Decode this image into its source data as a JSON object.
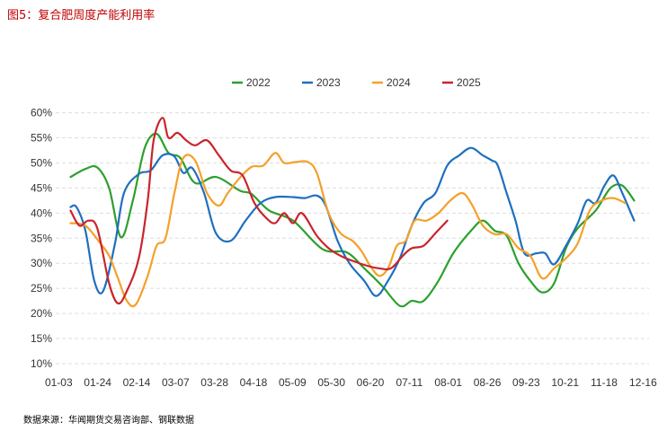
{
  "title": "图5：复合肥周度产能利用率",
  "source": "数据来源：华闻期货交易咨询部、钢联数据",
  "colors": {
    "2022": "#2ca02c",
    "2023": "#1f6fbf",
    "2024": "#f5a02a",
    "2025": "#c9242b"
  },
  "chart_data": {
    "type": "line",
    "title": "图5：复合肥周度产能利用率",
    "xlabel": "",
    "ylabel": "",
    "x_ticks": [
      "01-03",
      "01-24",
      "02-14",
      "03-07",
      "03-28",
      "04-18",
      "05-09",
      "05-30",
      "06-20",
      "07-11",
      "08-01",
      "08-26",
      "09-23",
      "10-21",
      "11-18",
      "12-16"
    ],
    "y_ticks": [
      "10%",
      "15%",
      "20%",
      "25%",
      "30%",
      "35%",
      "40%",
      "45%",
      "50%",
      "55%",
      "60%"
    ],
    "ylim": [
      10,
      61
    ],
    "xlim": [
      0,
      1
    ],
    "grid": true,
    "legend_position": "top",
    "series": [
      {
        "name": "2022",
        "color": "#2ca02c",
        "points": [
          [
            0.025,
            47.2
          ],
          [
            0.05,
            48.8
          ],
          [
            0.07,
            49.1
          ],
          [
            0.09,
            45.0
          ],
          [
            0.11,
            35.2
          ],
          [
            0.13,
            42.5
          ],
          [
            0.15,
            53.0
          ],
          [
            0.17,
            55.8
          ],
          [
            0.19,
            52.0
          ],
          [
            0.21,
            51.0
          ],
          [
            0.235,
            46.0
          ],
          [
            0.27,
            47.2
          ],
          [
            0.31,
            44.5
          ],
          [
            0.33,
            43.8
          ],
          [
            0.36,
            40.5
          ],
          [
            0.4,
            38.5
          ],
          [
            0.45,
            32.8
          ],
          [
            0.49,
            32.2
          ],
          [
            0.52,
            29.0
          ],
          [
            0.55,
            25.5
          ],
          [
            0.58,
            21.5
          ],
          [
            0.6,
            22.5
          ],
          [
            0.62,
            22.5
          ],
          [
            0.645,
            26.5
          ],
          [
            0.67,
            32.0
          ],
          [
            0.7,
            36.5
          ],
          [
            0.72,
            38.5
          ],
          [
            0.74,
            36.5
          ],
          [
            0.76,
            35.5
          ],
          [
            0.78,
            30.0
          ],
          [
            0.8,
            26.5
          ],
          [
            0.82,
            24.2
          ],
          [
            0.84,
            26.0
          ],
          [
            0.86,
            33.0
          ],
          [
            0.88,
            37.0
          ],
          [
            0.91,
            40.5
          ],
          [
            0.935,
            45.0
          ],
          [
            0.955,
            45.5
          ],
          [
            0.975,
            42.5
          ]
        ]
      },
      {
        "name": "2023",
        "color": "#1f6fbf",
        "points": [
          [
            0.025,
            41.2
          ],
          [
            0.035,
            41.2
          ],
          [
            0.05,
            36.5
          ],
          [
            0.065,
            26.5
          ],
          [
            0.08,
            24.5
          ],
          [
            0.1,
            34.0
          ],
          [
            0.115,
            44.0
          ],
          [
            0.14,
            47.8
          ],
          [
            0.16,
            48.5
          ],
          [
            0.18,
            51.5
          ],
          [
            0.2,
            51.3
          ],
          [
            0.215,
            48.0
          ],
          [
            0.23,
            49.0
          ],
          [
            0.25,
            44.0
          ],
          [
            0.27,
            36.0
          ],
          [
            0.295,
            34.5
          ],
          [
            0.32,
            38.5
          ],
          [
            0.345,
            42.0
          ],
          [
            0.37,
            43.2
          ],
          [
            0.4,
            43.2
          ],
          [
            0.42,
            43.0
          ],
          [
            0.44,
            43.5
          ],
          [
            0.455,
            41.5
          ],
          [
            0.475,
            34.5
          ],
          [
            0.495,
            30.0
          ],
          [
            0.52,
            26.5
          ],
          [
            0.54,
            23.5
          ],
          [
            0.56,
            26.5
          ],
          [
            0.58,
            31.0
          ],
          [
            0.6,
            37.5
          ],
          [
            0.62,
            42.0
          ],
          [
            0.64,
            44.0
          ],
          [
            0.66,
            49.5
          ],
          [
            0.68,
            51.5
          ],
          [
            0.7,
            53.0
          ],
          [
            0.72,
            51.5
          ],
          [
            0.735,
            50.5
          ],
          [
            0.745,
            49.5
          ],
          [
            0.76,
            44.0
          ],
          [
            0.775,
            38.5
          ],
          [
            0.79,
            32.0
          ],
          [
            0.81,
            32.0
          ],
          [
            0.825,
            32.0
          ],
          [
            0.84,
            29.8
          ],
          [
            0.86,
            33.5
          ],
          [
            0.88,
            38.0
          ],
          [
            0.895,
            42.5
          ],
          [
            0.91,
            42.0
          ],
          [
            0.925,
            45.5
          ],
          [
            0.94,
            47.5
          ],
          [
            0.955,
            44.0
          ],
          [
            0.975,
            38.5
          ]
        ]
      },
      {
        "name": "2024",
        "color": "#f5a02a",
        "points": [
          [
            0.025,
            38.0
          ],
          [
            0.05,
            37.5
          ],
          [
            0.075,
            34.0
          ],
          [
            0.09,
            31.5
          ],
          [
            0.105,
            27.0
          ],
          [
            0.12,
            22.5
          ],
          [
            0.135,
            21.8
          ],
          [
            0.155,
            27.5
          ],
          [
            0.17,
            33.5
          ],
          [
            0.185,
            35.0
          ],
          [
            0.2,
            44.0
          ],
          [
            0.215,
            51.0
          ],
          [
            0.235,
            50.5
          ],
          [
            0.255,
            44.0
          ],
          [
            0.275,
            41.5
          ],
          [
            0.29,
            44.0
          ],
          [
            0.31,
            47.0
          ],
          [
            0.33,
            49.2
          ],
          [
            0.35,
            49.5
          ],
          [
            0.37,
            52.0
          ],
          [
            0.385,
            50.0
          ],
          [
            0.405,
            50.2
          ],
          [
            0.425,
            50.2
          ],
          [
            0.44,
            48.0
          ],
          [
            0.46,
            40.0
          ],
          [
            0.48,
            36.0
          ],
          [
            0.5,
            34.5
          ],
          [
            0.515,
            32.5
          ],
          [
            0.53,
            29.5
          ],
          [
            0.545,
            27.5
          ],
          [
            0.56,
            29.0
          ],
          [
            0.575,
            33.5
          ],
          [
            0.59,
            34.5
          ],
          [
            0.605,
            38.5
          ],
          [
            0.625,
            38.5
          ],
          [
            0.645,
            40.0
          ],
          [
            0.665,
            42.5
          ],
          [
            0.685,
            44.0
          ],
          [
            0.7,
            42.0
          ],
          [
            0.72,
            37.5
          ],
          [
            0.74,
            35.8
          ],
          [
            0.76,
            35.8
          ],
          [
            0.78,
            33.0
          ],
          [
            0.8,
            31.5
          ],
          [
            0.82,
            27.0
          ],
          [
            0.84,
            29.0
          ],
          [
            0.86,
            31.0
          ],
          [
            0.88,
            34.0
          ],
          [
            0.9,
            40.5
          ],
          [
            0.92,
            42.5
          ],
          [
            0.94,
            43.0
          ],
          [
            0.96,
            42.0
          ]
        ]
      },
      {
        "name": "2025",
        "color": "#c9242b",
        "points": [
          [
            0.025,
            40.5
          ],
          [
            0.04,
            37.5
          ],
          [
            0.055,
            38.5
          ],
          [
            0.07,
            37.0
          ],
          [
            0.09,
            26.0
          ],
          [
            0.105,
            22.0
          ],
          [
            0.12,
            24.5
          ],
          [
            0.14,
            31.0
          ],
          [
            0.155,
            42.5
          ],
          [
            0.165,
            54.5
          ],
          [
            0.18,
            59.0
          ],
          [
            0.19,
            55.0
          ],
          [
            0.205,
            56.0
          ],
          [
            0.22,
            54.5
          ],
          [
            0.235,
            53.5
          ],
          [
            0.255,
            54.5
          ],
          [
            0.275,
            51.5
          ],
          [
            0.295,
            48.5
          ],
          [
            0.315,
            47.5
          ],
          [
            0.335,
            42.0
          ],
          [
            0.355,
            39.0
          ],
          [
            0.37,
            38.0
          ],
          [
            0.385,
            40.0
          ],
          [
            0.4,
            38.0
          ],
          [
            0.415,
            40.0
          ],
          [
            0.44,
            35.5
          ],
          [
            0.46,
            33.0
          ],
          [
            0.48,
            31.5
          ],
          [
            0.5,
            30.5
          ],
          [
            0.525,
            29.5
          ],
          [
            0.545,
            29.0
          ],
          [
            0.565,
            29.0
          ],
          [
            0.585,
            31.5
          ],
          [
            0.6,
            33.0
          ],
          [
            0.62,
            33.5
          ],
          [
            0.64,
            36.0
          ],
          [
            0.66,
            38.5
          ]
        ]
      }
    ]
  }
}
